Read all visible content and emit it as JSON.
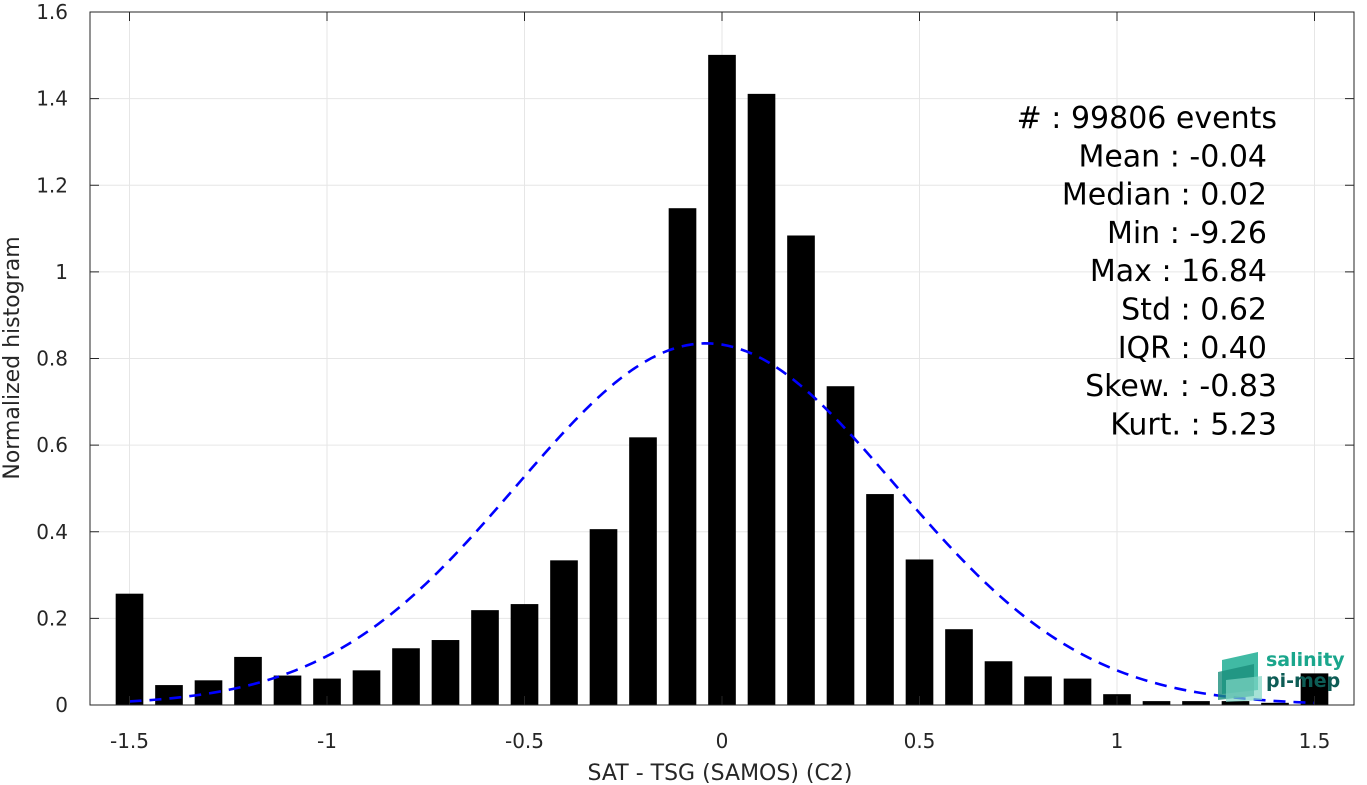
{
  "chart_data": {
    "type": "bar",
    "xlabel": "SAT - TSG (SAMOS) (C2)",
    "ylabel": "Normalized histogram",
    "xlim": [
      -1.6,
      1.6
    ],
    "ylim": [
      0,
      1.6
    ],
    "xticks": [
      -1.5,
      -1,
      -0.5,
      0,
      0.5,
      1,
      1.5
    ],
    "xtick_labels": [
      "-1.5",
      "-1",
      "-0.5",
      "0",
      "0.5",
      "1",
      "1.5"
    ],
    "yticks": [
      0,
      0.2,
      0.4,
      0.6,
      0.8,
      1,
      1.2,
      1.4,
      1.6
    ],
    "ytick_labels": [
      "0",
      "0.2",
      "0.4",
      "0.6",
      "0.8",
      "1",
      "1.2",
      "1.4",
      "1.6"
    ],
    "grid": true,
    "bar_color": "#000000",
    "bins": [
      -1.5,
      -1.4,
      -1.3,
      -1.2,
      -1.1,
      -1.0,
      -0.9,
      -0.8,
      -0.7,
      -0.6,
      -0.5,
      -0.4,
      -0.3,
      -0.2,
      -0.1,
      0.0,
      0.1,
      0.2,
      0.3,
      0.4,
      0.5,
      0.6,
      0.7,
      0.8,
      0.9,
      1.0,
      1.1,
      1.2,
      1.3,
      1.4,
      1.5
    ],
    "values": [
      0.257,
      0.046,
      0.057,
      0.111,
      0.068,
      0.061,
      0.08,
      0.131,
      0.15,
      0.219,
      0.233,
      0.334,
      0.406,
      0.618,
      1.147,
      1.501,
      1.411,
      1.084,
      0.736,
      0.487,
      0.336,
      0.175,
      0.101,
      0.066,
      0.061,
      0.025,
      0.009,
      0.009,
      0.009,
      0.005,
      0.073
    ],
    "fit": {
      "type": "gaussian",
      "mean": -0.04,
      "std": 0.48,
      "peak": 0.835,
      "x_range": [
        -1.5,
        1.5
      ],
      "color": "#0000ff",
      "style": "dashed"
    },
    "stats_lines": [
      "#  : 99806 events",
      "Mean : -0.04",
      "Median : 0.02",
      "Min : -9.26",
      "Max : 16.84",
      "Std : 0.62",
      "IQR : 0.40",
      "Skew. : -0.83",
      "Kurt. : 5.23"
    ],
    "stats_placement": "top-right"
  },
  "logo": {
    "line1": "salinity",
    "line2": "pi-mep",
    "color1": "#1aa68c",
    "color2": "#0d5c55"
  }
}
